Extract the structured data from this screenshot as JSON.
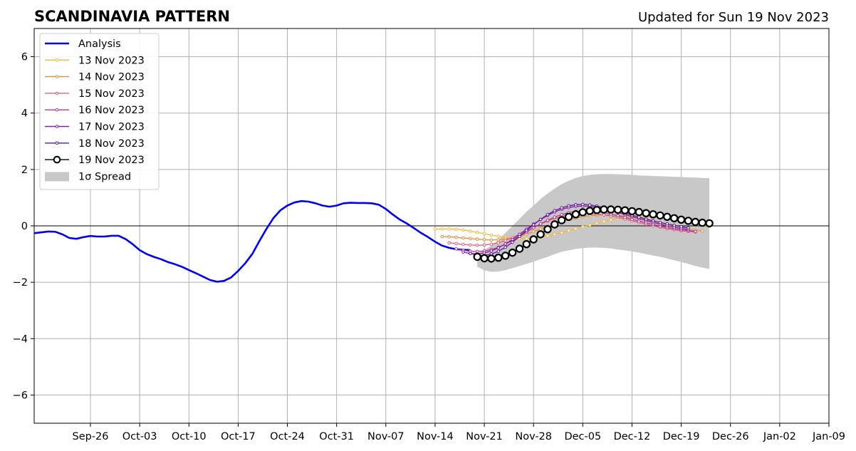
{
  "chart_data": {
    "type": "line",
    "title": "SCANDINAVIA PATTERN",
    "subtitle": "Updated for Sun 19 Nov 2023",
    "xlabel": "",
    "ylabel": "",
    "xlim": [
      "2023-09-18",
      "2024-01-09"
    ],
    "ylim": [
      -7,
      7
    ],
    "x_ticks": [
      "Sep-26",
      "Oct-03",
      "Oct-10",
      "Oct-17",
      "Oct-24",
      "Oct-31",
      "Nov-07",
      "Nov-14",
      "Nov-21",
      "Nov-28",
      "Dec-05",
      "Dec-12",
      "Dec-19",
      "Dec-26",
      "Jan-02",
      "Jan-09"
    ],
    "x_tick_dates": [
      "2023-09-26",
      "2023-10-03",
      "2023-10-10",
      "2023-10-17",
      "2023-10-24",
      "2023-10-31",
      "2023-11-07",
      "2023-11-14",
      "2023-11-21",
      "2023-11-28",
      "2023-12-05",
      "2023-12-12",
      "2023-12-19",
      "2023-12-26",
      "2024-01-02",
      "2024-01-09"
    ],
    "y_ticks": [
      "−6",
      "−4",
      "−2",
      "0",
      "2",
      "4",
      "6"
    ],
    "y_tick_values": [
      -6,
      -4,
      -2,
      0,
      2,
      4,
      6
    ],
    "grid": true,
    "legend_position": "top-left",
    "analysis": {
      "name": "Analysis",
      "color": "#0000ee",
      "dates": [
        "2023-09-18",
        "2023-09-20",
        "2023-09-21",
        "2023-09-22",
        "2023-09-23",
        "2023-09-24",
        "2023-09-25",
        "2023-09-26",
        "2023-09-27",
        "2023-09-28",
        "2023-09-29",
        "2023-09-30",
        "2023-10-01",
        "2023-10-02",
        "2023-10-03",
        "2023-10-04",
        "2023-10-05",
        "2023-10-06",
        "2023-10-07",
        "2023-10-08",
        "2023-10-09",
        "2023-10-10",
        "2023-10-11",
        "2023-10-12",
        "2023-10-13",
        "2023-10-14",
        "2023-10-15",
        "2023-10-16",
        "2023-10-17",
        "2023-10-18",
        "2023-10-19",
        "2023-10-20",
        "2023-10-21",
        "2023-10-22",
        "2023-10-23",
        "2023-10-24",
        "2023-10-25",
        "2023-10-26",
        "2023-10-27",
        "2023-10-28",
        "2023-10-29",
        "2023-10-30",
        "2023-10-31",
        "2023-11-01",
        "2023-11-02",
        "2023-11-03",
        "2023-11-04",
        "2023-11-05",
        "2023-11-06",
        "2023-11-07",
        "2023-11-08",
        "2023-11-09",
        "2023-11-10",
        "2023-11-11",
        "2023-11-12",
        "2023-11-13",
        "2023-11-14",
        "2023-11-15",
        "2023-11-16",
        "2023-11-17",
        "2023-11-18",
        "2023-11-19"
      ],
      "values": [
        -0.26,
        -0.2,
        -0.21,
        -0.3,
        -0.43,
        -0.46,
        -0.4,
        -0.36,
        -0.38,
        -0.38,
        -0.35,
        -0.35,
        -0.47,
        -0.65,
        -0.86,
        -1.0,
        -1.1,
        -1.18,
        -1.28,
        -1.36,
        -1.45,
        -1.57,
        -1.68,
        -1.8,
        -1.92,
        -1.98,
        -1.95,
        -1.83,
        -1.6,
        -1.33,
        -1.0,
        -0.55,
        -0.12,
        0.27,
        0.55,
        0.72,
        0.83,
        0.88,
        0.86,
        0.8,
        0.72,
        0.68,
        0.72,
        0.8,
        0.82,
        0.81,
        0.81,
        0.8,
        0.75,
        0.6,
        0.4,
        0.22,
        0.08,
        -0.08,
        -0.25,
        -0.4,
        -0.56,
        -0.7,
        -0.78,
        -0.83,
        -0.85,
        -0.86
      ]
    },
    "series": [
      {
        "name": "13 Nov 2023",
        "color": "#f6b93b",
        "start": "2023-11-14",
        "values": [
          -0.12,
          -0.11,
          -0.11,
          -0.12,
          -0.15,
          -0.19,
          -0.23,
          -0.28,
          -0.33,
          -0.37,
          -0.41,
          -0.44,
          -0.45,
          -0.45,
          -0.43,
          -0.4,
          -0.35,
          -0.3,
          -0.24,
          -0.17,
          -0.1,
          -0.03,
          0.03,
          0.1,
          0.16,
          0.21,
          0.25,
          0.29,
          0.31,
          0.32,
          0.32,
          0.31,
          0.28,
          0.25,
          0.21,
          0.17,
          0.13,
          0.08,
          0.03,
          -0.02
        ]
      },
      {
        "name": "14 Nov 2023",
        "color": "#ee8a3b",
        "start": "2023-11-15",
        "values": [
          -0.38,
          -0.39,
          -0.41,
          -0.43,
          -0.45,
          -0.47,
          -0.49,
          -0.5,
          -0.49,
          -0.47,
          -0.43,
          -0.37,
          -0.29,
          -0.2,
          -0.11,
          -0.02,
          0.07,
          0.15,
          0.22,
          0.28,
          0.33,
          0.36,
          0.38,
          0.39,
          0.39,
          0.37,
          0.34,
          0.3,
          0.25,
          0.2,
          0.14,
          0.08,
          0.02,
          -0.03,
          -0.08,
          -0.13,
          -0.16,
          -0.18
        ]
      },
      {
        "name": "15 Nov 2023",
        "color": "#e0607e",
        "start": "2023-11-16",
        "values": [
          -0.6,
          -0.63,
          -0.66,
          -0.68,
          -0.69,
          -0.68,
          -0.65,
          -0.6,
          -0.52,
          -0.42,
          -0.3,
          -0.18,
          -0.06,
          0.06,
          0.17,
          0.26,
          0.33,
          0.38,
          0.41,
          0.43,
          0.43,
          0.42,
          0.39,
          0.35,
          0.3,
          0.24,
          0.18,
          0.12,
          0.06,
          0.0,
          -0.05,
          -0.1,
          -0.14,
          -0.18,
          -0.2,
          -0.22
        ]
      },
      {
        "name": "16 Nov 2023",
        "color": "#b03a8f",
        "start": "2023-11-17",
        "values": [
          -0.82,
          -0.87,
          -0.9,
          -0.91,
          -0.89,
          -0.84,
          -0.76,
          -0.65,
          -0.52,
          -0.37,
          -0.22,
          -0.07,
          0.07,
          0.2,
          0.31,
          0.4,
          0.47,
          0.51,
          0.53,
          0.53,
          0.51,
          0.47,
          0.42,
          0.36,
          0.3,
          0.23,
          0.17,
          0.11,
          0.05,
          -0.01,
          -0.06,
          -0.1,
          -0.14,
          -0.17,
          -0.2
        ]
      },
      {
        "name": "17 Nov 2023",
        "color": "#8e1aa6",
        "start": "2023-11-18",
        "values": [
          -0.93,
          -0.98,
          -0.99,
          -0.96,
          -0.89,
          -0.78,
          -0.64,
          -0.48,
          -0.3,
          -0.12,
          0.06,
          0.22,
          0.37,
          0.49,
          0.59,
          0.65,
          0.69,
          0.7,
          0.69,
          0.65,
          0.6,
          0.54,
          0.47,
          0.4,
          0.33,
          0.26,
          0.19,
          0.12,
          0.06,
          0.0,
          -0.05,
          -0.09,
          -0.13
        ]
      },
      {
        "name": "18 Nov 2023",
        "color": "#5a1a9a",
        "start": "2023-11-19",
        "values": [
          -0.98,
          -1.04,
          -1.05,
          -1.0,
          -0.9,
          -0.76,
          -0.58,
          -0.38,
          -0.17,
          0.04,
          0.23,
          0.4,
          0.54,
          0.64,
          0.71,
          0.75,
          0.76,
          0.74,
          0.7,
          0.65,
          0.59,
          0.52,
          0.45,
          0.38,
          0.31,
          0.24,
          0.18,
          0.12,
          0.07,
          0.02,
          -0.03,
          -0.07
        ]
      },
      {
        "name": "19 Nov 2023",
        "color": "#000000",
        "start": "2023-11-20",
        "values": [
          -1.1,
          -1.15,
          -1.16,
          -1.13,
          -1.06,
          -0.95,
          -0.81,
          -0.65,
          -0.48,
          -0.3,
          -0.12,
          0.05,
          0.2,
          0.32,
          0.41,
          0.48,
          0.53,
          0.56,
          0.58,
          0.58,
          0.57,
          0.55,
          0.52,
          0.49,
          0.45,
          0.41,
          0.37,
          0.32,
          0.27,
          0.22,
          0.18,
          0.14,
          0.11,
          0.09
        ]
      }
    ],
    "spread": {
      "name": "1σ Spread",
      "color": "#c8c8c8",
      "start": "2023-11-20",
      "upper": [
        -1.0,
        -0.85,
        -0.7,
        -0.5,
        -0.25,
        0.0,
        0.25,
        0.5,
        0.72,
        0.95,
        1.15,
        1.32,
        1.48,
        1.6,
        1.7,
        1.77,
        1.81,
        1.83,
        1.84,
        1.84,
        1.83,
        1.82,
        1.81,
        1.79,
        1.78,
        1.77,
        1.76,
        1.75,
        1.74,
        1.73,
        1.72,
        1.71,
        1.7,
        1.69
      ],
      "lower": [
        -1.45,
        -1.58,
        -1.63,
        -1.62,
        -1.57,
        -1.5,
        -1.42,
        -1.35,
        -1.27,
        -1.18,
        -1.1,
        -1.0,
        -0.92,
        -0.87,
        -0.82,
        -0.79,
        -0.77,
        -0.77,
        -0.78,
        -0.8,
        -0.84,
        -0.87,
        -0.91,
        -0.95,
        -1.0,
        -1.05,
        -1.1,
        -1.16,
        -1.22,
        -1.28,
        -1.35,
        -1.42,
        -1.48,
        -1.53
      ]
    }
  }
}
